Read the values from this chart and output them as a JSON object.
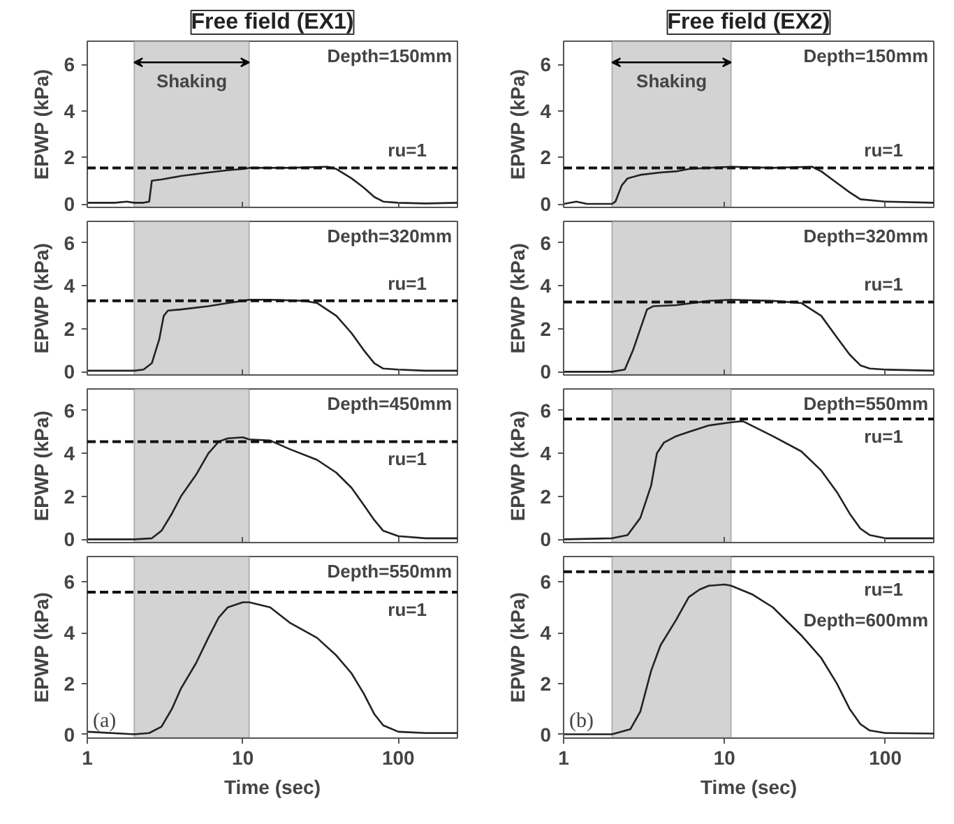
{
  "chart_data": [
    {
      "type": "line",
      "title": "Free field (EX1)",
      "ylabel": "EPWP (kPa)",
      "annotations": [
        "Depth=150mm",
        "ru=1"
      ],
      "log": "x",
      "xlim": [
        1,
        240
      ],
      "ylim": [
        -0.15,
        7
      ],
      "xticks": [
        1,
        10,
        100
      ],
      "yticks": [
        0,
        2,
        4,
        6
      ],
      "tick_labels": "y",
      "bands": [
        {
          "axis": "x",
          "from": 2,
          "to": 11,
          "label": "Shaking",
          "color": "#d3d3d3"
        }
      ],
      "ref_lines": [
        {
          "axis": "y",
          "value": 1.55,
          "line_style": "dashed"
        }
      ],
      "x": [
        1,
        1.5,
        1.8,
        2,
        2.3,
        2.5,
        2.6,
        3,
        4,
        6,
        8,
        10,
        11,
        20,
        35,
        40,
        50,
        60,
        70,
        80,
        100,
        150,
        240
      ],
      "values": [
        0.05,
        0.05,
        0.1,
        0.05,
        0.05,
        0.1,
        1.0,
        1.05,
        1.2,
        1.35,
        1.45,
        1.5,
        1.55,
        1.55,
        1.6,
        1.5,
        1.1,
        0.7,
        0.3,
        0.1,
        0.05,
        0.02,
        0.05
      ],
      "color": "#222222"
    },
    {
      "type": "line",
      "title": "Free field (EX2)",
      "ylabel": "EPWP (kPa)",
      "annotations": [
        "Depth=150mm",
        "ru=1"
      ],
      "log": "x",
      "xlim": [
        1,
        200
      ],
      "ylim": [
        -0.15,
        7
      ],
      "xticks": [
        1,
        10,
        100
      ],
      "yticks": [
        0,
        2,
        4,
        6
      ],
      "tick_labels": "y",
      "bands": [
        {
          "axis": "x",
          "from": 2,
          "to": 11,
          "label": "Shaking",
          "color": "#d3d3d3"
        }
      ],
      "ref_lines": [
        {
          "axis": "y",
          "value": 1.55,
          "line_style": "dashed"
        }
      ],
      "x": [
        1,
        1.2,
        1.4,
        2,
        2.1,
        2.3,
        2.5,
        3,
        4,
        5,
        6,
        8,
        11,
        20,
        35,
        40,
        50,
        60,
        70,
        100,
        200
      ],
      "values": [
        0,
        0.1,
        0,
        0,
        0.1,
        0.8,
        1.1,
        1.25,
        1.35,
        1.4,
        1.5,
        1.55,
        1.6,
        1.55,
        1.6,
        1.4,
        0.9,
        0.5,
        0.2,
        0.1,
        0.05
      ],
      "color": "#222222"
    },
    {
      "type": "line",
      "ylabel": "EPWP (kPa)",
      "annotations": [
        "Depth=320mm",
        "ru=1"
      ],
      "log": "x",
      "xlim": [
        1,
        240
      ],
      "ylim": [
        -0.15,
        7
      ],
      "xticks": [
        1,
        10,
        100
      ],
      "yticks": [
        0,
        2,
        4,
        6
      ],
      "tick_labels": "y",
      "bands": [
        {
          "axis": "x",
          "from": 2,
          "to": 11,
          "color": "#d3d3d3"
        }
      ],
      "ref_lines": [
        {
          "axis": "y",
          "value": 3.3,
          "line_style": "dashed"
        }
      ],
      "x": [
        1,
        2,
        2.3,
        2.6,
        2.9,
        3.1,
        3.3,
        4,
        6,
        8,
        10,
        11,
        15,
        25,
        30,
        40,
        50,
        60,
        70,
        80,
        100,
        150,
        240
      ],
      "values": [
        0.05,
        0.05,
        0.1,
        0.4,
        1.5,
        2.6,
        2.85,
        2.9,
        3.05,
        3.2,
        3.3,
        3.35,
        3.35,
        3.3,
        3.2,
        2.6,
        1.8,
        1.0,
        0.4,
        0.15,
        0.1,
        0.05,
        0.05
      ],
      "color": "#222222"
    },
    {
      "type": "line",
      "ylabel": "EPWP (kPa)",
      "annotations": [
        "Depth=320mm",
        "ru=1"
      ],
      "log": "x",
      "xlim": [
        1,
        200
      ],
      "ylim": [
        -0.15,
        7
      ],
      "xticks": [
        1,
        10,
        100
      ],
      "yticks": [
        0,
        2,
        4,
        6
      ],
      "tick_labels": "y",
      "bands": [
        {
          "axis": "x",
          "from": 2,
          "to": 11,
          "color": "#d3d3d3"
        }
      ],
      "ref_lines": [
        {
          "axis": "y",
          "value": 3.25,
          "line_style": "dashed"
        }
      ],
      "x": [
        1,
        2,
        2.4,
        2.7,
        3,
        3.3,
        3.6,
        5,
        8,
        11,
        20,
        30,
        40,
        50,
        60,
        70,
        80,
        100,
        200
      ],
      "values": [
        0,
        0,
        0.1,
        1.0,
        2.0,
        2.9,
        3.05,
        3.1,
        3.3,
        3.35,
        3.3,
        3.2,
        2.6,
        1.6,
        0.8,
        0.3,
        0.15,
        0.1,
        0.05
      ],
      "color": "#222222"
    },
    {
      "type": "line",
      "ylabel": "EPWP (kPa)",
      "annotations": [
        "Depth=450mm",
        "ru=1"
      ],
      "log": "x",
      "xlim": [
        1,
        240
      ],
      "ylim": [
        -0.15,
        7
      ],
      "xticks": [
        1,
        10,
        100
      ],
      "yticks": [
        0,
        2,
        4,
        6
      ],
      "tick_labels": "y",
      "bands": [
        {
          "axis": "x",
          "from": 2,
          "to": 11,
          "color": "#d3d3d3"
        }
      ],
      "ref_lines": [
        {
          "axis": "y",
          "value": 4.55,
          "line_style": "dashed"
        }
      ],
      "x": [
        1,
        2,
        2.6,
        3,
        3.5,
        4,
        5,
        6,
        7,
        8,
        10,
        11,
        15,
        20,
        30,
        40,
        50,
        60,
        70,
        80,
        100,
        150,
        240
      ],
      "values": [
        0,
        0,
        0.05,
        0.4,
        1.2,
        2.0,
        3.0,
        4.0,
        4.55,
        4.7,
        4.75,
        4.65,
        4.6,
        4.2,
        3.7,
        3.1,
        2.4,
        1.6,
        0.9,
        0.4,
        0.15,
        0.05,
        0.05
      ],
      "color": "#222222"
    },
    {
      "type": "line",
      "ylabel": "EPWP (kPa)",
      "annotations": [
        "Depth=550mm",
        "ru=1"
      ],
      "log": "x",
      "xlim": [
        1,
        200
      ],
      "ylim": [
        -0.15,
        7
      ],
      "xticks": [
        1,
        10,
        100
      ],
      "yticks": [
        0,
        2,
        4,
        6
      ],
      "tick_labels": "y",
      "bands": [
        {
          "axis": "x",
          "from": 2,
          "to": 11,
          "color": "#d3d3d3"
        }
      ],
      "ref_lines": [
        {
          "axis": "y",
          "value": 5.6,
          "line_style": "dashed"
        }
      ],
      "x": [
        1,
        2,
        2.5,
        3,
        3.5,
        3.8,
        4.2,
        5,
        6,
        8,
        11,
        13,
        20,
        30,
        40,
        50,
        60,
        70,
        80,
        100,
        200
      ],
      "values": [
        0,
        0.05,
        0.2,
        1.0,
        2.5,
        4.0,
        4.5,
        4.8,
        5.0,
        5.3,
        5.45,
        5.5,
        4.8,
        4.1,
        3.2,
        2.2,
        1.2,
        0.5,
        0.2,
        0.05,
        0.05
      ],
      "color": "#222222"
    },
    {
      "type": "line",
      "ylabel": "EPWP (kPa)",
      "xlabel": "Time (sec)",
      "annotations": [
        "Depth=550mm",
        "ru=1",
        "(a)"
      ],
      "log": "x",
      "xlim": [
        1,
        240
      ],
      "ylim": [
        -0.15,
        7
      ],
      "xticks": [
        1,
        10,
        100
      ],
      "yticks": [
        0,
        2,
        4,
        6
      ],
      "bands": [
        {
          "axis": "x",
          "from": 2,
          "to": 11,
          "color": "#d3d3d3"
        }
      ],
      "ref_lines": [
        {
          "axis": "y",
          "value": 5.6,
          "line_style": "dashed"
        }
      ],
      "x": [
        1,
        2,
        2.5,
        3,
        3.5,
        4,
        5,
        6,
        7,
        8,
        10,
        11,
        15,
        20,
        30,
        40,
        50,
        60,
        70,
        80,
        100,
        150,
        240
      ],
      "values": [
        0.1,
        0,
        0.05,
        0.3,
        1.0,
        1.8,
        2.8,
        3.8,
        4.6,
        5.0,
        5.2,
        5.2,
        5.0,
        4.4,
        3.8,
        3.1,
        2.4,
        1.6,
        0.8,
        0.35,
        0.1,
        0.05,
        0.05
      ],
      "color": "#222222"
    },
    {
      "type": "line",
      "ylabel": "EPWP (kPa)",
      "xlabel": "Time (sec)",
      "annotations": [
        "Depth=600mm",
        "ru=1",
        "(b)"
      ],
      "log": "x",
      "xlim": [
        1,
        200
      ],
      "ylim": [
        -0.15,
        7
      ],
      "xticks": [
        1,
        10,
        100
      ],
      "yticks": [
        0,
        2,
        4,
        6
      ],
      "bands": [
        {
          "axis": "x",
          "from": 2,
          "to": 11,
          "color": "#d3d3d3"
        }
      ],
      "ref_lines": [
        {
          "axis": "y",
          "value": 6.4,
          "line_style": "dashed"
        }
      ],
      "x": [
        1,
        2,
        2.6,
        3,
        3.5,
        4,
        5,
        6,
        7,
        8,
        10,
        11,
        15,
        20,
        30,
        40,
        50,
        60,
        70,
        80,
        100,
        200
      ],
      "values": [
        0,
        0,
        0.2,
        0.9,
        2.5,
        3.5,
        4.5,
        5.4,
        5.7,
        5.85,
        5.9,
        5.85,
        5.5,
        5.0,
        3.9,
        3.0,
        2.0,
        1.0,
        0.4,
        0.15,
        0.05,
        0.03
      ],
      "color": "#222222"
    }
  ]
}
